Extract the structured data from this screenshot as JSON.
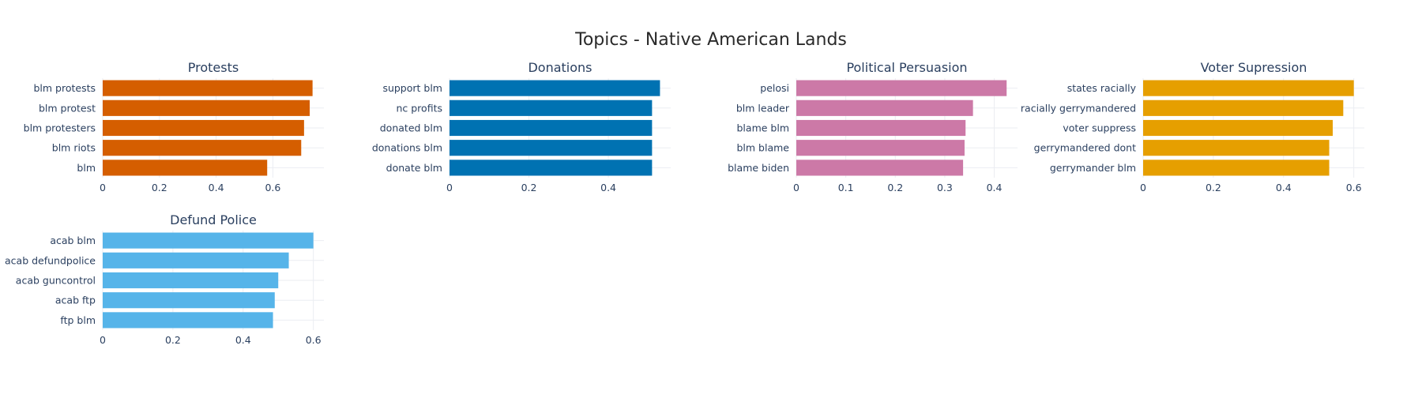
{
  "title": "Topics - Native American Lands",
  "chart_data": [
    {
      "type": "bar",
      "orientation": "horizontal",
      "title": "Protests",
      "color": "#D55E00",
      "categories": [
        "blm protests",
        "blm protest",
        "blm protesters",
        "blm riots",
        "blm"
      ],
      "values": [
        0.74,
        0.73,
        0.71,
        0.7,
        0.58
      ],
      "xlim": [
        0,
        0.78
      ],
      "ticks": [
        0,
        0.2,
        0.4,
        0.6
      ],
      "tick_labels": [
        "0",
        "0.2",
        "0.4",
        "0.6"
      ],
      "grid": true
    },
    {
      "type": "bar",
      "orientation": "horizontal",
      "title": "Donations",
      "color": "#0072B2",
      "categories": [
        "support blm",
        "nc profits",
        "donated blm",
        "donations blm",
        "donate blm"
      ],
      "values": [
        0.53,
        0.51,
        0.51,
        0.51,
        0.51
      ],
      "xlim": [
        0,
        0.557
      ],
      "ticks": [
        0,
        0.2,
        0.4
      ],
      "tick_labels": [
        "0",
        "0.2",
        "0.4"
      ],
      "grid": true
    },
    {
      "type": "bar",
      "orientation": "horizontal",
      "title": "Political Persuasion",
      "color": "#CC79A7",
      "categories": [
        "pelosi",
        "blm leader",
        "blame blm",
        "blm blame",
        "blame biden"
      ],
      "values": [
        0.425,
        0.357,
        0.342,
        0.34,
        0.337
      ],
      "xlim": [
        0,
        0.447
      ],
      "ticks": [
        0,
        0.1,
        0.2,
        0.3,
        0.4
      ],
      "tick_labels": [
        "0",
        "0.1",
        "0.2",
        "0.3",
        "0.4"
      ],
      "grid": true
    },
    {
      "type": "bar",
      "orientation": "horizontal",
      "title": "Voter Supression",
      "color": "#E69F00",
      "categories": [
        "states racially",
        "racially gerrymandered",
        "voter suppress",
        "gerrymandered dont",
        "gerrymander blm"
      ],
      "values": [
        0.6,
        0.57,
        0.54,
        0.53,
        0.53
      ],
      "xlim": [
        0,
        0.63
      ],
      "ticks": [
        0,
        0.2,
        0.4,
        0.6
      ],
      "tick_labels": [
        "0",
        "0.2",
        "0.4",
        "0.6"
      ],
      "grid": true
    },
    {
      "type": "bar",
      "orientation": "horizontal",
      "title": "Defund Police",
      "color": "#56B4E9",
      "categories": [
        "acab blm",
        "acab defundpolice",
        "acab guncontrol",
        "acab ftp",
        "ftp blm"
      ],
      "values": [
        0.6,
        0.53,
        0.5,
        0.49,
        0.485
      ],
      "xlim": [
        0,
        0.63
      ],
      "ticks": [
        0,
        0.2,
        0.4,
        0.6
      ],
      "tick_labels": [
        "0",
        "0.2",
        "0.4",
        "0.6"
      ],
      "grid": true
    }
  ]
}
